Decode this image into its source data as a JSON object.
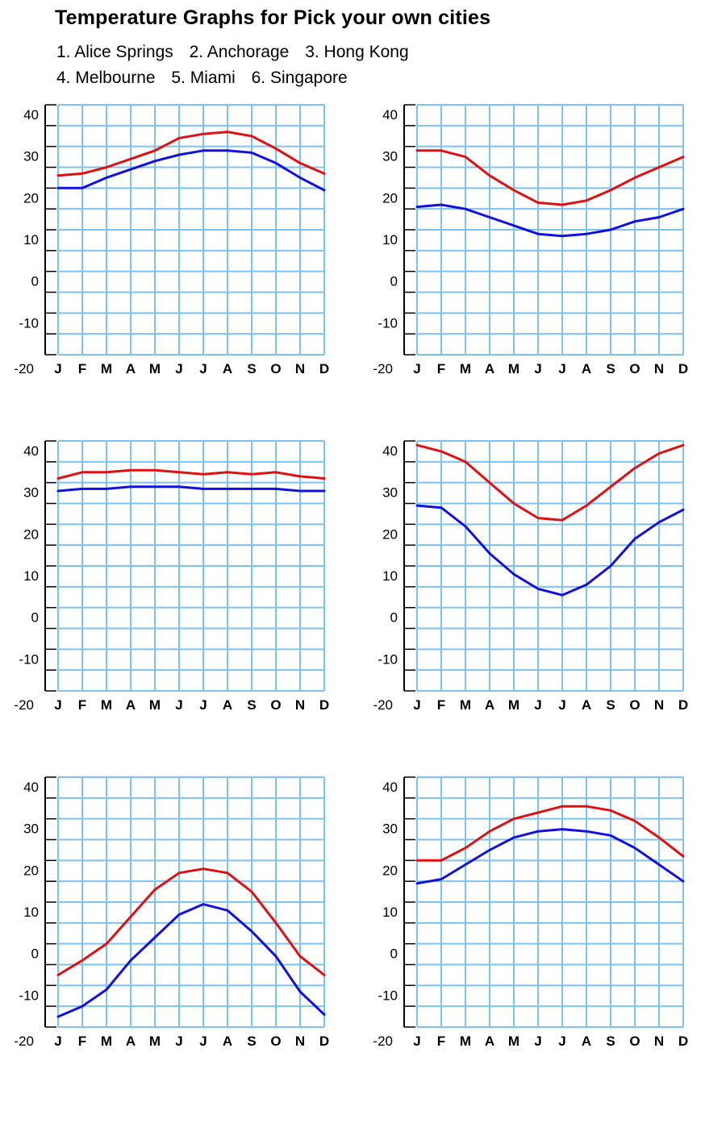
{
  "header": {
    "title": "Temperature Graphs for Pick your own cities",
    "cities_line1": [
      "1. Alice Springs",
      "2. Anchorage",
      "3. Hong Kong"
    ],
    "cities_line2": [
      "4. Melbourne",
      "5. Miami",
      "6. Singapore"
    ]
  },
  "colors": {
    "max": "#e01010",
    "min": "#1010e0",
    "grid": "#7ec3f0",
    "axis": "#000000"
  },
  "chart_data": [
    {
      "type": "line",
      "title": "",
      "categories": [
        "J",
        "F",
        "M",
        "A",
        "M",
        "J",
        "J",
        "A",
        "S",
        "O",
        "N",
        "D"
      ],
      "ylim": [
        -20,
        40
      ],
      "yticks": [
        "40",
        "30",
        "20",
        "10",
        "0",
        "-10",
        "-20"
      ],
      "grid": true,
      "series": [
        {
          "values": [
            23,
            23.5,
            25,
            27,
            29,
            32,
            33,
            33.5,
            32.5,
            29.5,
            26,
            23.5
          ]
        },
        {
          "values": [
            20,
            20,
            22.5,
            24.5,
            26.5,
            28,
            29,
            29,
            28.5,
            26,
            22.5,
            19.5
          ]
        }
      ]
    },
    {
      "type": "line",
      "title": "",
      "categories": [
        "J",
        "F",
        "M",
        "A",
        "M",
        "J",
        "J",
        "A",
        "S",
        "O",
        "N",
        "D"
      ],
      "ylim": [
        -20,
        40
      ],
      "yticks": [
        "40",
        "30",
        "20",
        "10",
        "0",
        "-10",
        "-20"
      ],
      "grid": true,
      "series": [
        {
          "values": [
            29,
            29,
            27.5,
            23,
            19.5,
            16.5,
            16,
            17,
            19.5,
            22.5,
            25,
            27.5
          ]
        },
        {
          "values": [
            15.5,
            16,
            15,
            13,
            11,
            9,
            8.5,
            9,
            10,
            12,
            13,
            15
          ]
        }
      ]
    },
    {
      "type": "line",
      "title": "",
      "categories": [
        "J",
        "F",
        "M",
        "A",
        "M",
        "J",
        "J",
        "A",
        "S",
        "O",
        "N",
        "D"
      ],
      "ylim": [
        -20,
        40
      ],
      "yticks": [
        "40",
        "30",
        "20",
        "10",
        "0",
        "-10",
        "-20"
      ],
      "grid": true,
      "series": [
        {
          "values": [
            31,
            32.5,
            32.5,
            33,
            33,
            32.5,
            32,
            32.5,
            32,
            32.5,
            31.5,
            31
          ]
        },
        {
          "values": [
            28,
            28.5,
            28.5,
            29,
            29,
            29,
            28.5,
            28.5,
            28.5,
            28.5,
            28,
            28
          ]
        }
      ]
    },
    {
      "type": "line",
      "title": "",
      "categories": [
        "J",
        "F",
        "M",
        "A",
        "M",
        "J",
        "J",
        "A",
        "S",
        "O",
        "N",
        "D"
      ],
      "ylim": [
        -20,
        40
      ],
      "yticks": [
        "40",
        "30",
        "20",
        "10",
        "0",
        "-10",
        "-20"
      ],
      "grid": true,
      "series": [
        {
          "values": [
            39,
            37.5,
            35,
            30,
            25,
            21.5,
            21,
            24.5,
            29,
            33.5,
            37,
            39
          ]
        },
        {
          "values": [
            24.5,
            24,
            19.5,
            13,
            8,
            4.5,
            3,
            5.5,
            10,
            16.5,
            20.5,
            23.5
          ]
        }
      ]
    },
    {
      "type": "line",
      "title": "",
      "categories": [
        "J",
        "F",
        "M",
        "A",
        "M",
        "J",
        "J",
        "A",
        "S",
        "O",
        "N",
        "D"
      ],
      "ylim": [
        -20,
        40
      ],
      "yticks": [
        "40",
        "30",
        "20",
        "10",
        "0",
        "-10",
        "-20"
      ],
      "grid": true,
      "series": [
        {
          "values": [
            -7.5,
            -4,
            0,
            6.5,
            13,
            17,
            18,
            17,
            12.5,
            5,
            -3,
            -7.5
          ]
        },
        {
          "values": [
            -17.5,
            -15,
            -11,
            -4,
            1.5,
            7,
            9.5,
            8,
            3,
            -3,
            -11.5,
            -17
          ]
        }
      ]
    },
    {
      "type": "line",
      "title": "",
      "categories": [
        "J",
        "F",
        "M",
        "A",
        "M",
        "J",
        "J",
        "A",
        "S",
        "O",
        "N",
        "D"
      ],
      "ylim": [
        -20,
        40
      ],
      "yticks": [
        "40",
        "30",
        "20",
        "10",
        "0",
        "-10",
        "-20"
      ],
      "grid": true,
      "series": [
        {
          "values": [
            20,
            20,
            23,
            27,
            30,
            31.5,
            33,
            33,
            32,
            29.5,
            25.5,
            21
          ]
        },
        {
          "values": [
            14.5,
            15.5,
            19,
            22.5,
            25.5,
            27,
            27.5,
            27,
            26,
            23,
            19,
            15
          ]
        }
      ]
    }
  ]
}
